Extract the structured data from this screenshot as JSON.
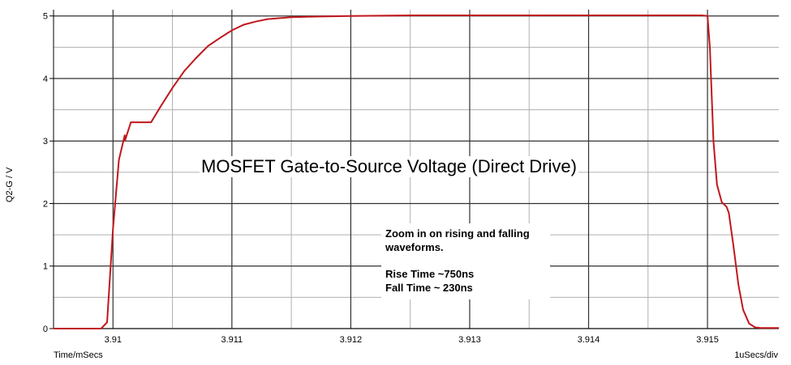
{
  "chart_data": {
    "type": "line",
    "title": "MOSFET Gate-to-Source Voltage (Direct Drive)",
    "xlabel": "Time/mSecs",
    "xscale_label": "1uSecs/div",
    "ylabel": "Q2-G / V",
    "xlim": [
      3.9095,
      3.9156
    ],
    "ylim": [
      0,
      5.1
    ],
    "x_ticks": [
      "3.91",
      "3.911",
      "3.912",
      "3.913",
      "3.914",
      "3.915"
    ],
    "x_tick_values": [
      3.91,
      3.911,
      3.912,
      3.913,
      3.914,
      3.915
    ],
    "y_ticks": [
      "0",
      "1",
      "2",
      "3",
      "4",
      "5"
    ],
    "y_tick_values": [
      0,
      1,
      2,
      3,
      4,
      5
    ],
    "grid": true,
    "line_color": "#c0171c",
    "series": [
      {
        "x": [
          3.9095,
          3.9099,
          3.90995,
          3.91,
          3.91005,
          3.9101,
          3.91015,
          3.9102,
          3.9103,
          3.91032,
          3.9104,
          3.9105,
          3.9106,
          3.9107,
          3.9108,
          3.9109,
          3.911,
          3.9111,
          3.9112,
          3.9113,
          3.9115,
          3.9117,
          3.912,
          3.9125,
          3.913,
          3.914,
          3.91495,
          3.915,
          3.91502,
          3.91505,
          3.9101,
          3.91508,
          3.91512,
          3.91516,
          3.91518,
          3.91522,
          3.91526,
          3.9153,
          3.91535,
          3.9154,
          3.91545,
          3.9155,
          3.9156
        ],
        "y": [
          0,
          0,
          0.1,
          1.6,
          2.7,
          3.1,
          3.3,
          3.3,
          3.3,
          3.3,
          3.55,
          3.85,
          4.12,
          4.33,
          4.52,
          4.65,
          4.77,
          4.86,
          4.91,
          4.95,
          4.98,
          4.99,
          5.0,
          5.01,
          5.01,
          5.01,
          5.01,
          5.0,
          4.5,
          3.0,
          3.0,
          2.3,
          2.02,
          1.95,
          1.85,
          1.3,
          0.7,
          0.3,
          0.08,
          0.02,
          0.01,
          0.01,
          0.01
        ]
      }
    ]
  },
  "annotation": {
    "line1": "Zoom in on rising and falling",
    "line2": "waveforms.",
    "line3": "Rise Time ~750ns",
    "line4": "Fall Time ~ 230ns"
  }
}
